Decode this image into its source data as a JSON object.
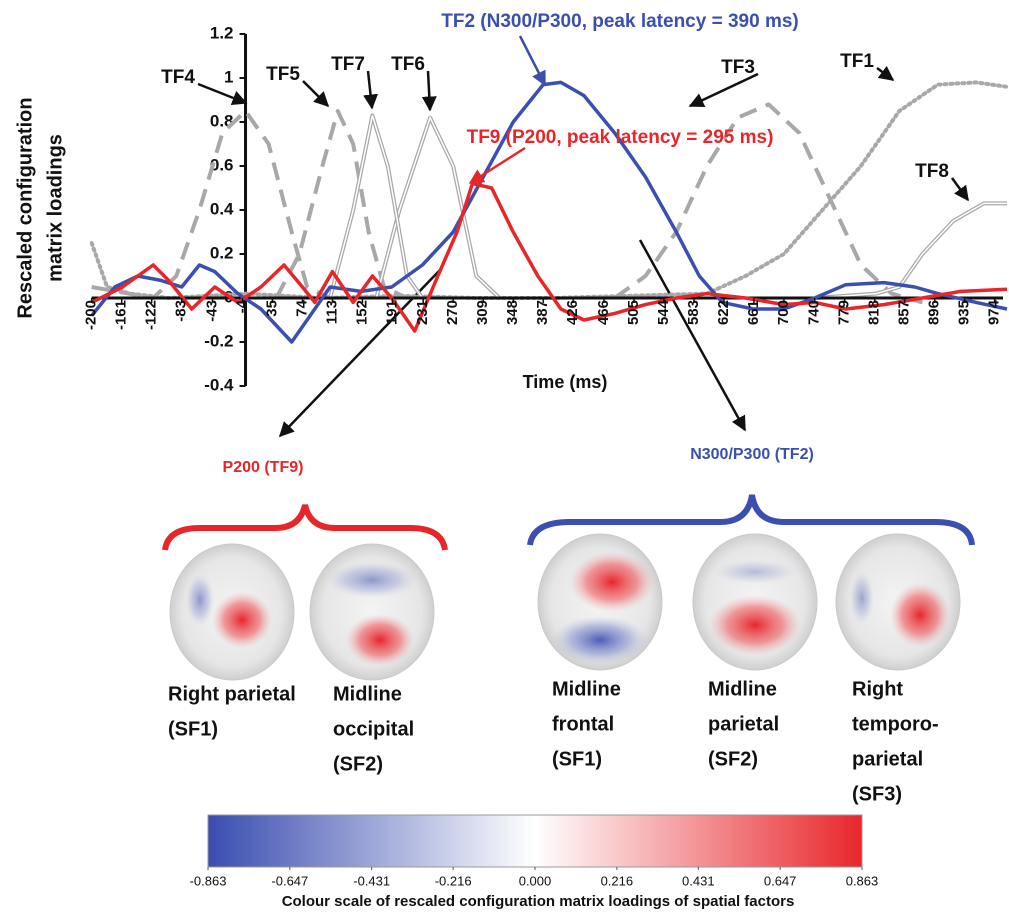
{
  "chart_data": {
    "type": "line",
    "y_label": [
      "Rescaled configuration",
      "matrix loadings"
    ],
    "x_label": "Time (ms)",
    "xlim": [
      -210,
      990
    ],
    "ylim": [
      -0.4,
      1.2
    ],
    "xticks": [
      -200,
      -161,
      -122,
      -83,
      -43,
      -4,
      35,
      74,
      113,
      152,
      191,
      231,
      270,
      309,
      348,
      387,
      426,
      466,
      505,
      544,
      583,
      622,
      661,
      700,
      740,
      779,
      818,
      857,
      896,
      935,
      974
    ],
    "yticks": [
      -0.4,
      -0.2,
      0,
      0.2,
      0.4,
      0.6,
      0.8,
      1,
      1.2
    ],
    "series": [
      {
        "name": "TF1",
        "color": "#a8a8a8",
        "style": "dotted",
        "x": [
          -200,
          -180,
          -150,
          -100,
          0,
          100,
          200,
          300,
          400,
          500,
          600,
          650,
          700,
          750,
          800,
          850,
          900,
          950,
          990
        ],
        "values": [
          0.25,
          0.05,
          0.02,
          0.0,
          0.02,
          0.0,
          0.01,
          0.0,
          0.0,
          0.01,
          0.02,
          0.1,
          0.2,
          0.4,
          0.6,
          0.85,
          0.97,
          0.98,
          0.96
        ]
      },
      {
        "name": "TF2",
        "color": "#3a4fb0",
        "style": "solid",
        "x": [
          -200,
          -170,
          -140,
          -110,
          -83,
          -60,
          -40,
          -10,
          20,
          60,
          80,
          110,
          150,
          190,
          230,
          270,
          309,
          348,
          387,
          410,
          440,
          480,
          520,
          560,
          590,
          620,
          660,
          700,
          740,
          780,
          830,
          870,
          900,
          950,
          990
        ],
        "values": [
          -0.08,
          0.05,
          0.1,
          0.08,
          0.05,
          0.15,
          0.12,
          0.02,
          -0.05,
          -0.2,
          -0.1,
          0.05,
          0.03,
          0.05,
          0.15,
          0.3,
          0.55,
          0.8,
          0.97,
          0.98,
          0.92,
          0.75,
          0.55,
          0.3,
          0.1,
          -0.02,
          -0.05,
          -0.05,
          0.0,
          0.06,
          0.07,
          0.05,
          0.02,
          -0.02,
          -0.05
        ]
      },
      {
        "name": "TF3",
        "color": "#a8a8a8",
        "style": "dashed",
        "x": [
          480,
          520,
          560,
          600,
          640,
          680,
          720,
          760,
          800,
          840,
          880
        ],
        "values": [
          0.0,
          0.1,
          0.3,
          0.6,
          0.82,
          0.88,
          0.75,
          0.45,
          0.15,
          0.02,
          -0.02
        ]
      },
      {
        "name": "TF4",
        "color": "#a8a8a8",
        "style": "dashed",
        "x": [
          -200,
          -120,
          -90,
          -60,
          -30,
          0,
          30,
          60,
          80,
          110
        ],
        "values": [
          0.05,
          0.0,
          0.1,
          0.4,
          0.75,
          0.85,
          0.7,
          0.3,
          0.05,
          0.0
        ]
      },
      {
        "name": "TF5",
        "color": "#a8a8a8",
        "style": "dashed",
        "x": [
          40,
          70,
          100,
          120,
          140,
          160,
          180,
          210
        ],
        "values": [
          0.0,
          0.2,
          0.6,
          0.85,
          0.7,
          0.3,
          0.05,
          0.0
        ]
      },
      {
        "name": "TF6",
        "color": "#a8a8a8",
        "style": "double",
        "x": [
          170,
          200,
          240,
          270,
          300,
          330
        ],
        "values": [
          0.0,
          0.4,
          0.82,
          0.6,
          0.1,
          0.0
        ]
      },
      {
        "name": "TF7",
        "color": "#a8a8a8",
        "style": "double",
        "x": [
          110,
          140,
          165,
          185,
          210,
          230
        ],
        "values": [
          0.0,
          0.4,
          0.83,
          0.6,
          0.1,
          0.0
        ]
      },
      {
        "name": "TF8",
        "color": "#a8a8a8",
        "style": "double",
        "x": [
          740,
          820,
          850,
          880,
          920,
          960,
          990
        ],
        "values": [
          0.0,
          0.02,
          0.05,
          0.2,
          0.35,
          0.43,
          0.43
        ]
      },
      {
        "name": "TF9",
        "color": "#e8262a",
        "style": "solid",
        "x": [
          -200,
          -160,
          -120,
          -100,
          -70,
          -40,
          -10,
          20,
          50,
          74,
          90,
          113,
          140,
          165,
          190,
          220,
          250,
          275,
          295,
          320,
          348,
          380,
          410,
          440,
          480,
          520,
          560,
          600,
          650,
          700,
          740,
          780,
          830,
          880,
          930,
          990
        ],
        "values": [
          -0.02,
          0.05,
          0.15,
          0.08,
          -0.05,
          0.05,
          -0.02,
          0.05,
          0.15,
          0.05,
          -0.02,
          0.12,
          -0.02,
          0.1,
          0.0,
          -0.15,
          0.1,
          0.3,
          0.52,
          0.5,
          0.3,
          0.1,
          -0.05,
          -0.1,
          -0.07,
          -0.03,
          0.0,
          0.02,
          0.0,
          -0.03,
          -0.02,
          -0.05,
          -0.03,
          0.0,
          0.03,
          0.04
        ]
      }
    ],
    "annotations": [
      {
        "text": "TF2 (N300/P300, peak latency = 390 ms)",
        "color": "#3a4fb0"
      },
      {
        "text": "TF9 (P200, peak latency = 295 ms)",
        "color": "#e8262a"
      }
    ]
  },
  "spatial_factors": {
    "groups": [
      {
        "title": "P200 (TF9)",
        "color": "#e8262a",
        "maps": [
          [
            "Right parietal",
            "(SF1)"
          ],
          [
            "Midline",
            "occipital",
            "(SF2)"
          ]
        ]
      },
      {
        "title": "N300/P300 (TF2)",
        "color": "#3a4fb0",
        "maps": [
          [
            "Midline",
            "frontal",
            "(SF1)"
          ],
          [
            "Midline",
            "parietal",
            "(SF2)"
          ],
          [
            "Right",
            "temporo-",
            "parietal",
            "(SF3)"
          ]
        ]
      }
    ]
  },
  "colorbar": {
    "label": "Colour scale of rescaled configuration matrix loadings of spatial factors",
    "xlim": [
      -0.863,
      0.863
    ],
    "ticks": [
      -0.863,
      -0.647,
      -0.431,
      -0.216,
      {
        "value": 0,
        "label": "0.000"
      },
      0.216,
      0.431,
      0.647,
      0.863
    ],
    "colors": [
      "#3a4db0",
      "#ffffff",
      "#e8272c"
    ]
  }
}
